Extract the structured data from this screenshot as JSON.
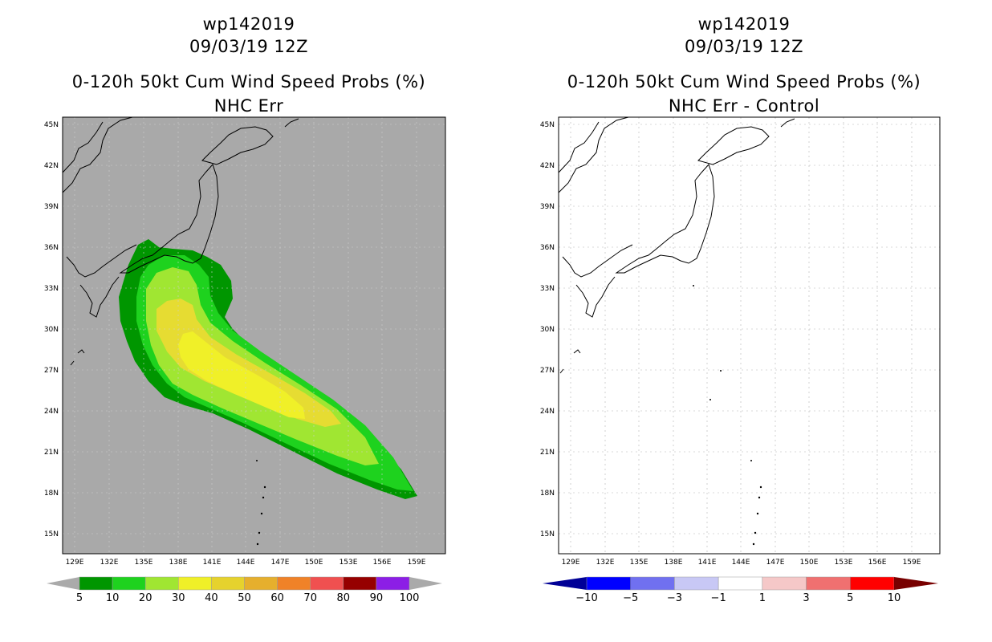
{
  "left_panel": {
    "storm_id": "wp142019",
    "datetime": "09/03/19 12Z",
    "product": "0-120h 50kt Cum Wind Speed Probs (%)",
    "subtitle": "NHC Err",
    "background_color": "#a9a9a9",
    "lat_labels": [
      "45N",
      "42N",
      "39N",
      "36N",
      "33N",
      "30N",
      "27N",
      "24N",
      "21N",
      "18N",
      "15N"
    ],
    "lon_labels": [
      "129E",
      "132E",
      "135E",
      "138E",
      "141E",
      "144E",
      "147E",
      "150E",
      "153E",
      "156E",
      "159E"
    ],
    "colorbar": {
      "labels": [
        "5",
        "10",
        "20",
        "30",
        "40",
        "50",
        "60",
        "70",
        "80",
        "90",
        "100"
      ],
      "colors": [
        "#009600",
        "#1ed21e",
        "#a0e632",
        "#f0f028",
        "#e6d22d",
        "#e6af2d",
        "#f08228",
        "#f05050",
        "#960000",
        "#8c1ee6"
      ],
      "cap_color": "#aaaaaa"
    },
    "contour_colors": {
      "p5": "#009600",
      "p10": "#1ed21e",
      "p20": "#a0e632",
      "p30": "#e6dc32",
      "p40": "#f0f028"
    }
  },
  "right_panel": {
    "storm_id": "wp142019",
    "datetime": "09/03/19 12Z",
    "product": "0-120h 50kt Cum Wind Speed Probs (%)",
    "subtitle": "NHC Err - Control",
    "background_color": "#ffffff",
    "lat_labels": [
      "45N",
      "42N",
      "39N",
      "36N",
      "33N",
      "30N",
      "27N",
      "24N",
      "21N",
      "18N",
      "15N"
    ],
    "lon_labels": [
      "129E",
      "132E",
      "135E",
      "138E",
      "141E",
      "144E",
      "147E",
      "150E",
      "153E",
      "156E",
      "159E"
    ],
    "colorbar": {
      "labels": [
        "-10",
        "-5",
        "-3",
        "-1",
        "1",
        "3",
        "5",
        "10"
      ],
      "colors": [
        "#0000ff",
        "#7070f0",
        "#c8c8f5",
        "#ffffff",
        "#f5c8c8",
        "#f07070",
        "#ff0000"
      ],
      "cap_low_color": "#000096",
      "cap_high_color": "#780000"
    }
  }
}
